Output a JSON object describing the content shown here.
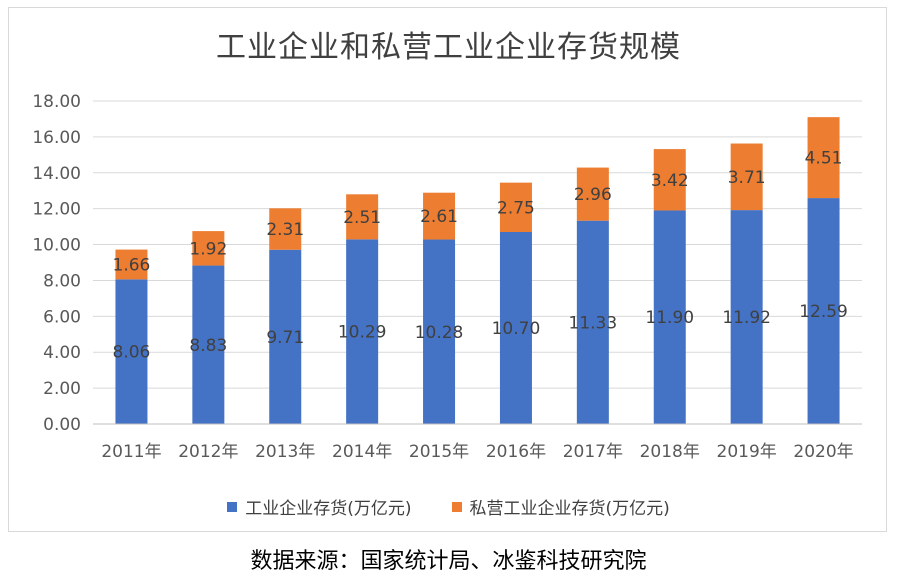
{
  "chart_data": {
    "type": "bar",
    "stacked": true,
    "title": "工业企业和私营工业企业存货规模",
    "categories": [
      "2011年",
      "2012年",
      "2013年",
      "2014年",
      "2015年",
      "2016年",
      "2017年",
      "2018年",
      "2019年",
      "2020年"
    ],
    "series": [
      {
        "name": "工业企业存货(万亿元)",
        "color": "#4472c4",
        "values": [
          8.06,
          8.83,
          9.71,
          10.29,
          10.28,
          10.7,
          11.33,
          11.9,
          11.92,
          12.59
        ],
        "labels": [
          "8.06",
          "8.83",
          "9.71",
          "10.29",
          "10.28",
          "10.70",
          "11.33",
          "11.90",
          "11.92",
          "12.59"
        ]
      },
      {
        "name": "私营工业企业存货(万亿元)",
        "color": "#ed7d31",
        "values": [
          1.66,
          1.92,
          2.31,
          2.51,
          2.61,
          2.75,
          2.96,
          3.42,
          3.71,
          4.51
        ],
        "labels": [
          "1.66",
          "1.92",
          "2.31",
          "2.51",
          "2.61",
          "2.75",
          "2.96",
          "3.42",
          "3.71",
          "4.51"
        ]
      }
    ],
    "ylim": [
      0,
      18
    ],
    "yticks": [
      "0.00",
      "2.00",
      "4.00",
      "6.00",
      "8.00",
      "10.00",
      "12.00",
      "14.00",
      "16.00",
      "18.00"
    ],
    "ytick_values": [
      0,
      2,
      4,
      6,
      8,
      10,
      12,
      14,
      16,
      18
    ],
    "grid": true,
    "legend_position": "bottom"
  },
  "source_text": "数据来源：国家统计局、冰鉴科技研究院"
}
